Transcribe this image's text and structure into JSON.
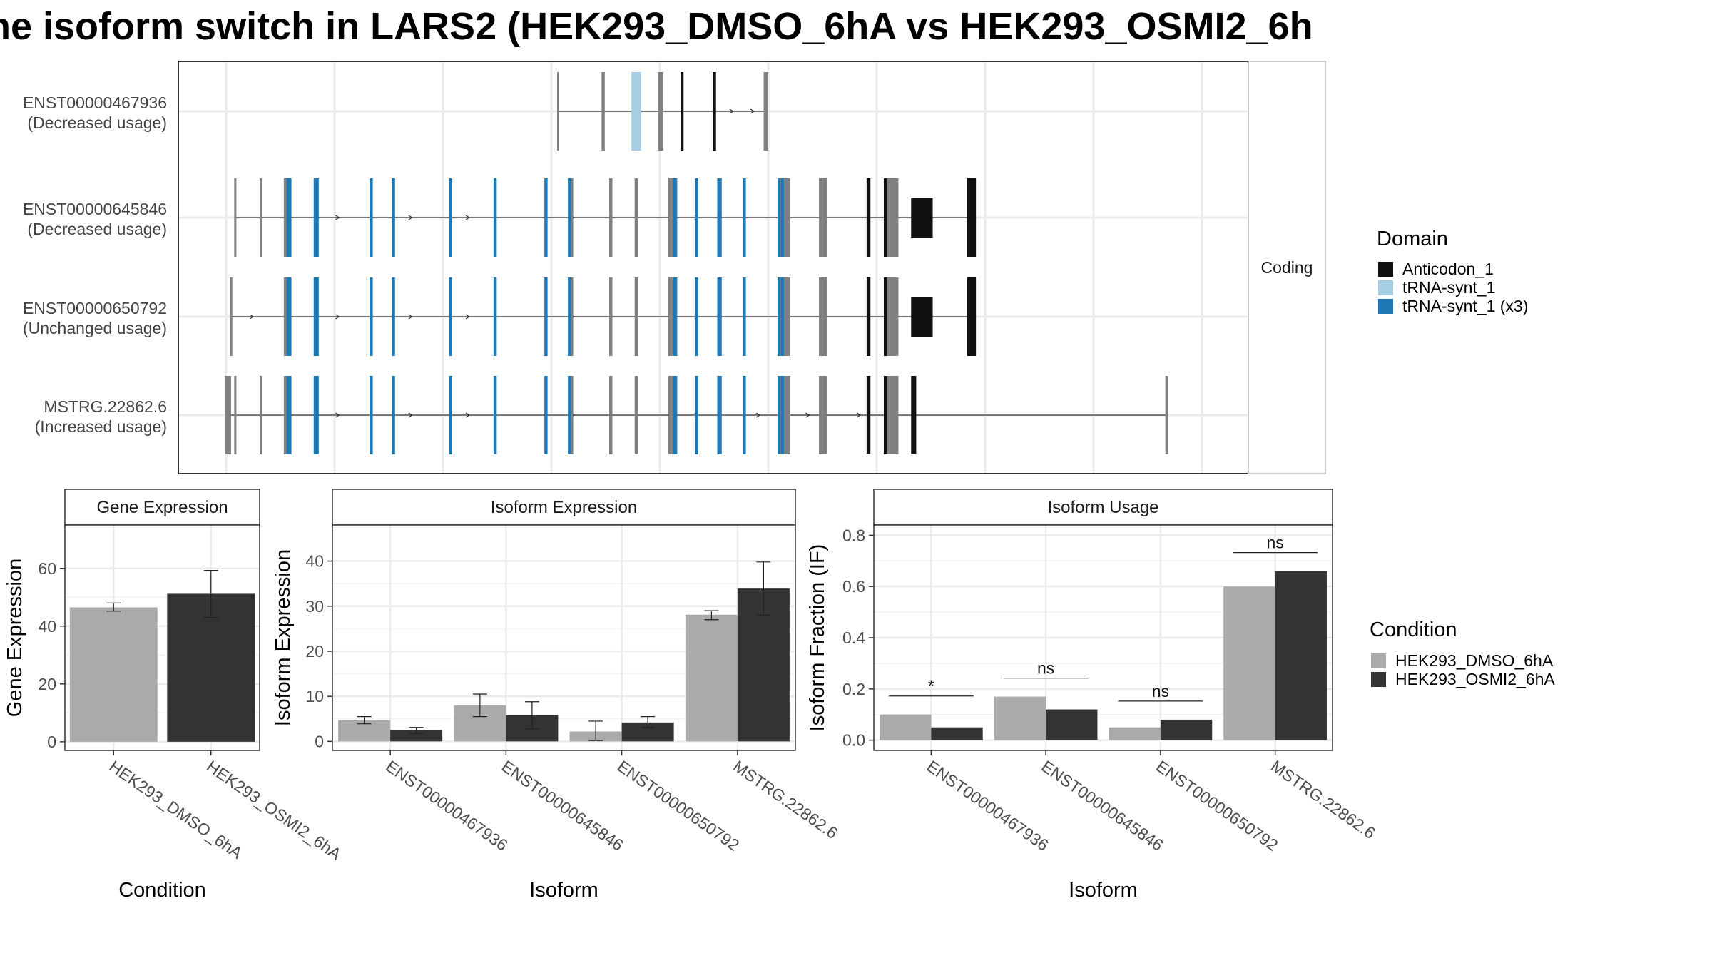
{
  "title": "ne isoform switch in LARS2 (HEK293_DMSO_6hA vs HEK293_OSMI2_6h",
  "colors": {
    "domain_anticodon": "#111111",
    "domain_trna": "#a6cee3",
    "domain_trna_x3": "#1f78b4",
    "exon_plain": "#808080",
    "cond_dmso": "#aaaaaa",
    "cond_osmi": "#333333"
  },
  "structure": {
    "strip_label": "Coding",
    "coord_range": [
      0,
      1000
    ],
    "isoforms": [
      {
        "name": "ENST00000467936",
        "usage": "(Decreased usage)",
        "exons": [
          {
            "s": 523,
            "e": 525,
            "t": "n"
          },
          {
            "s": 593,
            "e": 598,
            "t": "n"
          },
          {
            "s": 640,
            "e": 655,
            "t": "t"
          },
          {
            "s": 682,
            "e": 690,
            "t": "n"
          },
          {
            "s": 718,
            "e": 722,
            "t": "a"
          },
          {
            "s": 768,
            "e": 773,
            "t": "a"
          },
          {
            "s": 848,
            "e": 855,
            "t": "n"
          }
        ],
        "intron": [
          523,
          855
        ],
        "arrows": [
          800,
          833
        ]
      },
      {
        "name": "ENST00000645846",
        "usage": "(Decreased usage)",
        "exons": [
          {
            "s": 15,
            "e": 18,
            "t": "n"
          },
          {
            "s": 55,
            "e": 58,
            "t": "n"
          },
          {
            "s": 93,
            "e": 97,
            "t": "n"
          },
          {
            "s": 97,
            "e": 105,
            "t": "b"
          },
          {
            "s": 140,
            "e": 148,
            "t": "b"
          },
          {
            "s": 228,
            "e": 233,
            "t": "b"
          },
          {
            "s": 263,
            "e": 268,
            "t": "b"
          },
          {
            "s": 353,
            "e": 358,
            "t": "b"
          },
          {
            "s": 423,
            "e": 428,
            "t": "b"
          },
          {
            "s": 503,
            "e": 508,
            "t": "b"
          },
          {
            "s": 540,
            "e": 545,
            "t": "b"
          },
          {
            "s": 545,
            "e": 548,
            "t": "n"
          },
          {
            "s": 605,
            "e": 610,
            "t": "n"
          },
          {
            "s": 645,
            "e": 650,
            "t": "n"
          },
          {
            "s": 698,
            "e": 705,
            "t": "n"
          },
          {
            "s": 705,
            "e": 712,
            "t": "b"
          },
          {
            "s": 740,
            "e": 745,
            "t": "b"
          },
          {
            "s": 775,
            "e": 782,
            "t": "b"
          },
          {
            "s": 815,
            "e": 820,
            "t": "b"
          },
          {
            "s": 870,
            "e": 874,
            "t": "b"
          },
          {
            "s": 874,
            "e": 877,
            "t": "n"
          },
          {
            "s": 875,
            "e": 880,
            "t": "b"
          },
          {
            "s": 880,
            "e": 890,
            "t": "n"
          },
          {
            "s": 935,
            "e": 948,
            "t": "n"
          },
          {
            "s": 1010,
            "e": 1016,
            "t": "a"
          },
          {
            "s": 1037,
            "e": 1046,
            "t": "a"
          },
          {
            "s": 1042,
            "e": 1060,
            "t": "n"
          },
          {
            "s": 1080,
            "e": 1114,
            "t": "a"
          },
          {
            "s": 1168,
            "e": 1182,
            "t": "a"
          }
        ],
        "intron": [
          15,
          1182
        ],
        "arrows": [
          180,
          295,
          385,
          550,
          745
        ]
      }
    ]
  },
  "legends": {
    "domain": {
      "title": "Domain",
      "items": [
        "Anticodon_1",
        "tRNA-synt_1",
        "tRNA-synt_1 (x3)"
      ]
    },
    "condition": {
      "title": "Condition",
      "items": [
        "HEK293_DMSO_6hA",
        "HEK293_OSMI2_6hA"
      ]
    }
  },
  "chart_data": [
    {
      "type": "bar",
      "title": "Gene Expression",
      "xlabel": "Condition",
      "ylabel": "Gene Expression",
      "categories": [
        "HEK293_DMSO_6hA",
        "HEK293_OSMI2_6hA"
      ],
      "values": [
        46.5,
        51.2
      ],
      "errors": [
        [
          45.2,
          48.0
        ],
        [
          43.0,
          59.3
        ]
      ],
      "ylim": [
        -3,
        75
      ],
      "yticks": [
        0,
        20,
        40,
        60
      ]
    },
    {
      "type": "bar",
      "title": "Isoform Expression",
      "xlabel": "Isoform",
      "ylabel": "Isoform Expression",
      "categories": [
        "ENST00000467936",
        "ENST00000645846",
        "ENST00000650792",
        "MSTRG.22862.6"
      ],
      "series": [
        {
          "name": "HEK293_DMSO_6hA",
          "values": [
            4.7,
            8.0,
            2.2,
            28.1
          ],
          "errors": [
            [
              3.9,
              5.5
            ],
            [
              5.5,
              10.5
            ],
            [
              0.2,
              4.5
            ],
            [
              27.0,
              29.0
            ]
          ]
        },
        {
          "name": "HEK293_OSMI2_6hA",
          "values": [
            2.5,
            5.8,
            4.2,
            33.9
          ],
          "errors": [
            [
              1.8,
              3.1
            ],
            [
              2.8,
              8.8
            ],
            [
              3.0,
              5.5
            ],
            [
              28.0,
              39.8
            ]
          ]
        }
      ],
      "ylim": [
        -2,
        48
      ],
      "yticks": [
        0,
        10,
        20,
        30,
        40
      ]
    },
    {
      "type": "bar",
      "title": "Isoform Usage",
      "xlabel": "Isoform",
      "ylabel": "Isoform Fraction (IF)",
      "categories": [
        "ENST00000467936",
        "ENST00000645846",
        "ENST00000650792",
        "MSTRG.22862.6"
      ],
      "series": [
        {
          "name": "HEK293_DMSO_6hA",
          "values": [
            0.1,
            0.17,
            0.05,
            0.6
          ]
        },
        {
          "name": "HEK293_OSMI2_6hA",
          "values": [
            0.05,
            0.12,
            0.08,
            0.66
          ]
        }
      ],
      "significance": [
        "*",
        "ns",
        "ns",
        "ns"
      ],
      "ylim": [
        -0.04,
        0.84
      ],
      "yticks": [
        0.0,
        0.2,
        0.4,
        0.6,
        0.8
      ]
    }
  ]
}
